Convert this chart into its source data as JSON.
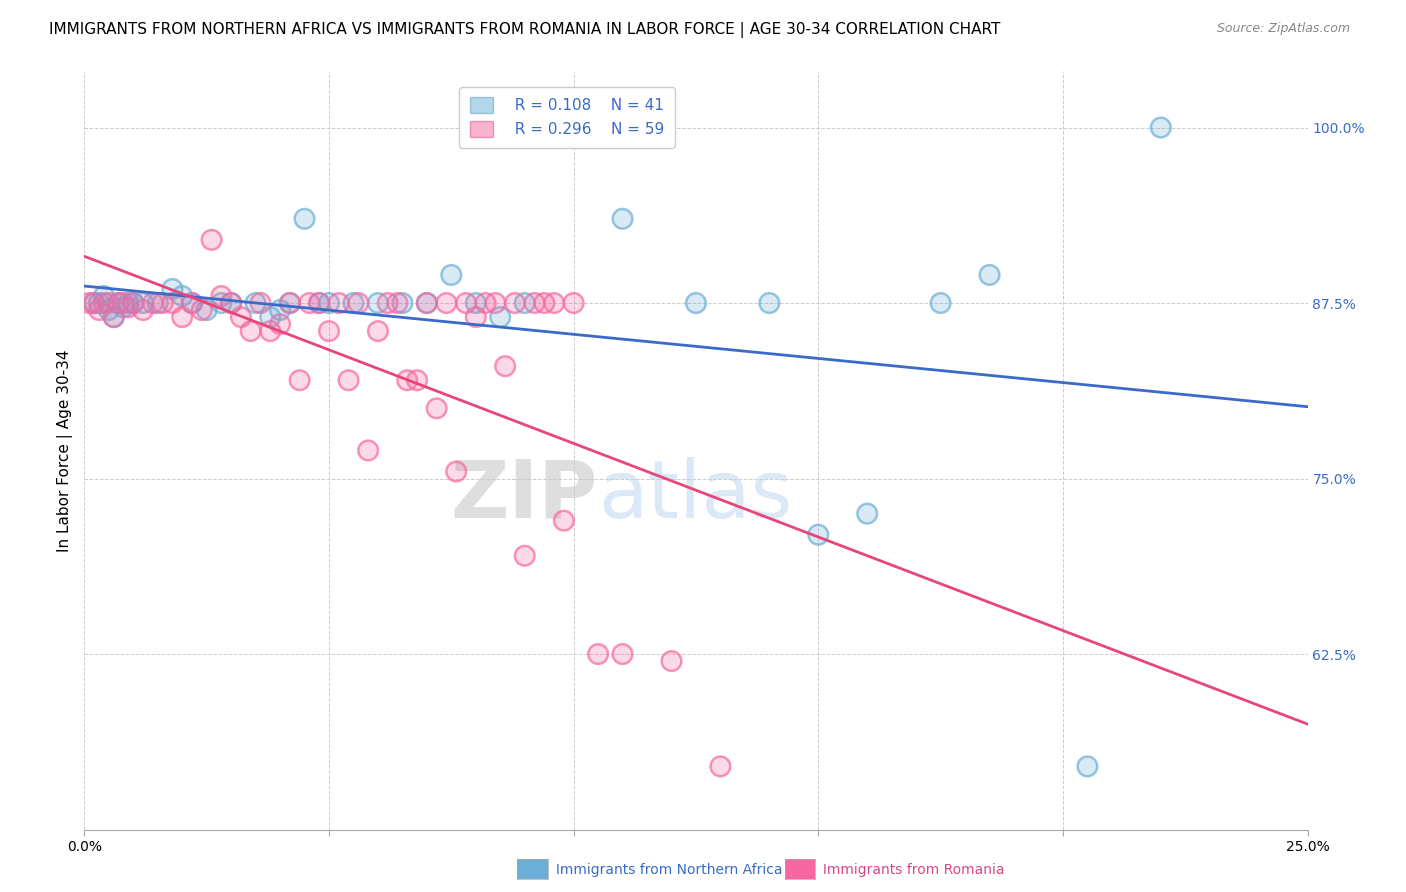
{
  "title": "IMMIGRANTS FROM NORTHERN AFRICA VS IMMIGRANTS FROM ROMANIA IN LABOR FORCE | AGE 30-34 CORRELATION CHART",
  "source": "Source: ZipAtlas.com",
  "ylabel": "In Labor Force | Age 30-34",
  "xlim": [
    0.0,
    0.25
  ],
  "ylim": [
    0.5,
    1.04
  ],
  "legend_r1": "R = 0.108",
  "legend_n1": "N = 41",
  "legend_r2": "R = 0.296",
  "legend_n2": "N = 59",
  "color_blue": "#6baed6",
  "color_pink": "#f768a1",
  "blue_scatter_x": [
    0.002,
    0.003,
    0.004,
    0.005,
    0.006,
    0.007,
    0.008,
    0.009,
    0.01,
    0.012,
    0.015,
    0.018,
    0.02,
    0.022,
    0.025,
    0.028,
    0.03,
    0.035,
    0.038,
    0.04,
    0.042,
    0.045,
    0.048,
    0.05,
    0.055,
    0.06,
    0.065,
    0.07,
    0.075,
    0.08,
    0.085,
    0.09,
    0.11,
    0.125,
    0.14,
    0.15,
    0.16,
    0.175,
    0.185,
    0.205,
    0.22
  ],
  "blue_scatter_y": [
    0.875,
    0.875,
    0.88,
    0.87,
    0.865,
    0.875,
    0.872,
    0.875,
    0.875,
    0.875,
    0.875,
    0.885,
    0.88,
    0.875,
    0.87,
    0.875,
    0.875,
    0.875,
    0.865,
    0.87,
    0.875,
    0.935,
    0.875,
    0.875,
    0.875,
    0.875,
    0.875,
    0.875,
    0.895,
    0.875,
    0.865,
    0.875,
    0.935,
    0.875,
    0.875,
    0.71,
    0.725,
    0.875,
    0.895,
    0.545,
    1.0
  ],
  "pink_scatter_x": [
    0.001,
    0.002,
    0.003,
    0.004,
    0.005,
    0.006,
    0.007,
    0.008,
    0.009,
    0.01,
    0.012,
    0.014,
    0.016,
    0.018,
    0.02,
    0.022,
    0.024,
    0.026,
    0.028,
    0.03,
    0.032,
    0.034,
    0.036,
    0.038,
    0.04,
    0.042,
    0.044,
    0.046,
    0.048,
    0.05,
    0.052,
    0.054,
    0.056,
    0.058,
    0.06,
    0.062,
    0.064,
    0.066,
    0.068,
    0.07,
    0.072,
    0.074,
    0.076,
    0.078,
    0.08,
    0.082,
    0.084,
    0.086,
    0.088,
    0.09,
    0.092,
    0.094,
    0.096,
    0.098,
    0.1,
    0.105,
    0.11,
    0.12,
    0.13
  ],
  "pink_scatter_y": [
    0.875,
    0.875,
    0.87,
    0.875,
    0.875,
    0.865,
    0.875,
    0.875,
    0.872,
    0.875,
    0.87,
    0.875,
    0.875,
    0.875,
    0.865,
    0.875,
    0.87,
    0.92,
    0.88,
    0.875,
    0.865,
    0.855,
    0.875,
    0.855,
    0.86,
    0.875,
    0.82,
    0.875,
    0.875,
    0.855,
    0.875,
    0.82,
    0.875,
    0.77,
    0.855,
    0.875,
    0.875,
    0.82,
    0.82,
    0.875,
    0.8,
    0.875,
    0.755,
    0.875,
    0.865,
    0.875,
    0.875,
    0.83,
    0.875,
    0.695,
    0.875,
    0.875,
    0.875,
    0.72,
    0.875,
    0.625,
    0.625,
    0.62,
    0.545
  ],
  "watermark_zip": "ZIP",
  "watermark_atlas": "atlas",
  "title_fontsize": 11,
  "axis_label_fontsize": 11,
  "tick_fontsize": 10,
  "legend_fontsize": 11
}
